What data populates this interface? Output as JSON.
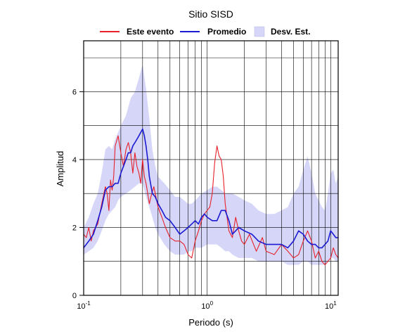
{
  "chart_data": {
    "type": "line",
    "title": "Sitio SISD",
    "xlabel": "Periodo (s)",
    "ylabel": "Amplitud",
    "x_scale": "log",
    "xlim": [
      0.1,
      11.5
    ],
    "ylim": [
      0,
      7.5
    ],
    "grid": true,
    "legend_position": "top",
    "x_tick_labels": [
      {
        "value": 0.1,
        "base": "10",
        "exp": "-1"
      },
      {
        "value": 1,
        "base": "10",
        "exp": "0"
      },
      {
        "value": 10,
        "base": "10",
        "exp": "1"
      }
    ],
    "y_ticks": [
      0,
      2,
      4,
      6
    ],
    "legend": [
      {
        "label": "Este evento",
        "color": "#e8202a",
        "kind": "line"
      },
      {
        "label": "Promedio",
        "color": "#1a1ad2",
        "kind": "line"
      },
      {
        "label": "Desv. Est.",
        "color": "#d6d6f8",
        "kind": "area"
      }
    ],
    "band": {
      "name": "Desv. Est.",
      "color": "#d6d6f8",
      "x": [
        0.1,
        0.11,
        0.12,
        0.13,
        0.14,
        0.15,
        0.16,
        0.17,
        0.18,
        0.19,
        0.2,
        0.22,
        0.24,
        0.26,
        0.28,
        0.3,
        0.32,
        0.34,
        0.36,
        0.38,
        0.4,
        0.45,
        0.5,
        0.55,
        0.6,
        0.65,
        0.7,
        0.75,
        0.8,
        0.85,
        0.9,
        1.0,
        1.1,
        1.2,
        1.3,
        1.4,
        1.5,
        1.6,
        1.8,
        2.0,
        2.3,
        2.6,
        3.0,
        3.5,
        4.0,
        4.5,
        5.0,
        5.5,
        6.0,
        6.5,
        7.0,
        7.5,
        8.0,
        8.5,
        9.0,
        9.5,
        10.0,
        10.5,
        11.0,
        11.5
      ],
      "upper": [
        2.0,
        2.3,
        2.7,
        3.0,
        3.6,
        4.3,
        4.4,
        4.3,
        4.6,
        4.8,
        5.0,
        5.3,
        5.8,
        6.0,
        6.4,
        6.8,
        6.1,
        5.2,
        4.3,
        3.8,
        3.5,
        3.3,
        3.1,
        2.9,
        2.9,
        2.8,
        2.7,
        2.7,
        2.8,
        2.9,
        3.0,
        3.1,
        3.2,
        3.2,
        3.1,
        3.0,
        3.0,
        3.0,
        2.9,
        2.8,
        2.7,
        2.5,
        2.4,
        2.4,
        2.5,
        2.6,
        3.0,
        3.2,
        3.7,
        4.1,
        3.6,
        3.0,
        2.8,
        2.6,
        2.5,
        3.0,
        3.6,
        3.7,
        3.3,
        3.5
      ],
      "lower": [
        1.2,
        1.3,
        1.4,
        1.6,
        1.9,
        2.2,
        2.4,
        2.5,
        2.6,
        2.8,
        2.9,
        3.0,
        3.1,
        3.2,
        3.3,
        3.3,
        2.9,
        2.6,
        2.3,
        2.0,
        1.8,
        1.5,
        1.3,
        1.2,
        1.2,
        1.2,
        1.3,
        1.3,
        1.4,
        1.4,
        1.4,
        1.5,
        1.5,
        1.5,
        1.4,
        1.3,
        1.3,
        1.2,
        1.1,
        1.1,
        1.1,
        1.0,
        1.0,
        1.0,
        1.0,
        0.9,
        0.9,
        0.9,
        1.0,
        1.0,
        0.9,
        0.9,
        0.9,
        0.9,
        0.9,
        1.0,
        1.1,
        1.1,
        1.0,
        1.0
      ]
    },
    "series": [
      {
        "name": "Este evento",
        "color": "#e8202a",
        "x": [
          0.1,
          0.105,
          0.11,
          0.115,
          0.12,
          0.13,
          0.14,
          0.15,
          0.155,
          0.16,
          0.165,
          0.17,
          0.175,
          0.18,
          0.19,
          0.2,
          0.21,
          0.22,
          0.23,
          0.24,
          0.25,
          0.26,
          0.27,
          0.28,
          0.29,
          0.3,
          0.31,
          0.32,
          0.33,
          0.34,
          0.35,
          0.37,
          0.4,
          0.43,
          0.46,
          0.5,
          0.55,
          0.6,
          0.65,
          0.7,
          0.75,
          0.8,
          0.85,
          0.9,
          0.95,
          1.0,
          1.05,
          1.1,
          1.15,
          1.2,
          1.25,
          1.3,
          1.35,
          1.4,
          1.5,
          1.6,
          1.7,
          1.8,
          1.9,
          2.0,
          2.2,
          2.5,
          2.8,
          3.0,
          3.5,
          4.0,
          4.5,
          5.0,
          5.5,
          6.0,
          6.5,
          7.0,
          7.5,
          8.0,
          8.5,
          9.0,
          9.5,
          10.0,
          10.5,
          11.0,
          11.5
        ],
        "y": [
          1.8,
          1.7,
          2.0,
          1.6,
          1.9,
          2.1,
          2.7,
          3.2,
          3.0,
          2.5,
          3.4,
          3.1,
          3.5,
          4.4,
          4.7,
          4.2,
          3.8,
          4.3,
          4.5,
          4.2,
          3.6,
          4.2,
          3.8,
          3.6,
          3.3,
          4.0,
          3.5,
          3.3,
          3.0,
          2.7,
          2.9,
          3.2,
          2.6,
          2.3,
          2.0,
          1.7,
          1.6,
          1.6,
          1.5,
          1.2,
          1.1,
          1.6,
          1.9,
          2.2,
          2.4,
          2.5,
          2.6,
          3.0,
          3.9,
          4.4,
          4.1,
          4.0,
          3.5,
          2.7,
          1.9,
          1.7,
          2.3,
          1.9,
          1.6,
          1.5,
          1.8,
          1.3,
          1.7,
          1.3,
          1.2,
          1.5,
          1.3,
          1.1,
          1.2,
          1.6,
          1.9,
          1.6,
          1.1,
          1.3,
          1.0,
          0.9,
          1.0,
          1.1,
          1.4,
          1.2,
          1.1
        ]
      },
      {
        "name": "Promedio",
        "color": "#1a1ad2",
        "x": [
          0.1,
          0.11,
          0.12,
          0.13,
          0.14,
          0.15,
          0.16,
          0.17,
          0.18,
          0.19,
          0.2,
          0.21,
          0.22,
          0.23,
          0.24,
          0.25,
          0.26,
          0.27,
          0.28,
          0.29,
          0.3,
          0.31,
          0.32,
          0.33,
          0.34,
          0.36,
          0.38,
          0.4,
          0.43,
          0.46,
          0.5,
          0.55,
          0.6,
          0.65,
          0.7,
          0.75,
          0.8,
          0.85,
          0.9,
          0.95,
          1.0,
          1.1,
          1.2,
          1.3,
          1.4,
          1.5,
          1.6,
          1.7,
          1.8,
          2.0,
          2.3,
          2.6,
          3.0,
          3.5,
          4.0,
          4.5,
          5.0,
          5.5,
          6.0,
          6.5,
          7.0,
          7.5,
          8.0,
          8.5,
          9.0,
          9.5,
          10.0,
          10.5,
          11.0,
          11.5
        ],
        "y": [
          1.4,
          1.6,
          1.8,
          2.2,
          2.6,
          3.1,
          3.2,
          3.2,
          3.3,
          3.3,
          3.6,
          3.8,
          4.0,
          4.2,
          4.2,
          4.4,
          4.5,
          4.6,
          4.7,
          4.8,
          4.9,
          4.7,
          4.4,
          4.0,
          3.5,
          3.0,
          2.9,
          2.7,
          2.5,
          2.3,
          2.2,
          2.0,
          1.8,
          1.9,
          2.0,
          2.1,
          2.2,
          2.1,
          2.3,
          2.4,
          2.3,
          2.2,
          2.2,
          2.5,
          2.5,
          2.2,
          1.8,
          1.9,
          2.0,
          1.9,
          1.8,
          1.6,
          1.5,
          1.5,
          1.5,
          1.4,
          1.6,
          1.9,
          1.8,
          1.6,
          1.5,
          1.5,
          1.4,
          1.4,
          1.5,
          1.6,
          1.9,
          1.8,
          1.7,
          1.7
        ]
      }
    ]
  }
}
